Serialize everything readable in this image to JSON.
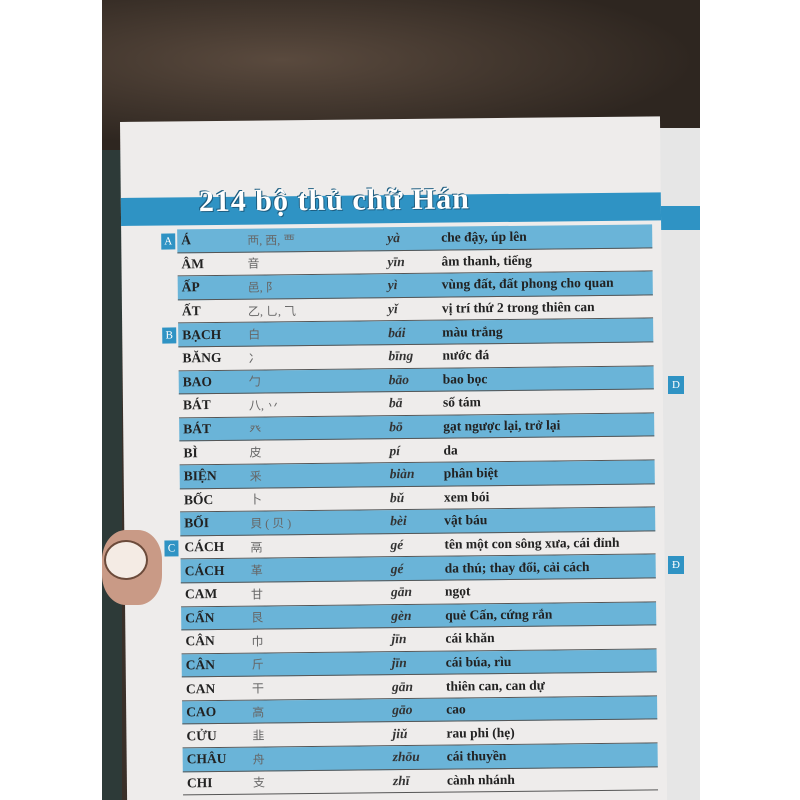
{
  "title": "214 bộ thủ chữ Hán",
  "rows": [
    {
      "name": "Á",
      "hanzi": "襾, 西, 覀",
      "pinyin": "yà",
      "meaning": "che đậy, úp lên",
      "letter": "A"
    },
    {
      "name": "ÂM",
      "hanzi": "音",
      "pinyin": "yīn",
      "meaning": "âm thanh, tiếng"
    },
    {
      "name": "ẤP",
      "hanzi": "邑, 阝",
      "pinyin": "yì",
      "meaning": "vùng đất, đất phong cho quan"
    },
    {
      "name": "ẤT",
      "hanzi": "乙, 乚, ⺄",
      "pinyin": "yǐ",
      "meaning": "vị trí thứ 2 trong thiên can"
    },
    {
      "name": "BẠCH",
      "hanzi": "白",
      "pinyin": "bái",
      "meaning": "màu trắng",
      "letter": "B"
    },
    {
      "name": "BĂNG",
      "hanzi": "冫",
      "pinyin": "bīng",
      "meaning": "nước đá"
    },
    {
      "name": "BAO",
      "hanzi": "勹",
      "pinyin": "bāo",
      "meaning": "bao bọc"
    },
    {
      "name": "BÁT",
      "hanzi": "八, 丷",
      "pinyin": "bā",
      "meaning": "số tám"
    },
    {
      "name": "BÁT",
      "hanzi": "癶",
      "pinyin": "bō",
      "meaning": "gạt ngược lại, trở lại"
    },
    {
      "name": "BÌ",
      "hanzi": "皮",
      "pinyin": "pí",
      "meaning": "da"
    },
    {
      "name": "BIỆN",
      "hanzi": "釆",
      "pinyin": "biàn",
      "meaning": "phân biệt"
    },
    {
      "name": "BỐC",
      "hanzi": "卜",
      "pinyin": "bǔ",
      "meaning": "xem bói"
    },
    {
      "name": "BỐI",
      "hanzi": "貝 ( 贝 )",
      "pinyin": "bèi",
      "meaning": "vật báu"
    },
    {
      "name": "CÁCH",
      "hanzi": "鬲",
      "pinyin": "gé",
      "meaning": "tên một con sông xưa, cái đỉnh",
      "letter": "C"
    },
    {
      "name": "CÁCH",
      "hanzi": "革",
      "pinyin": "gé",
      "meaning": "da thú; thay đổi, cải cách"
    },
    {
      "name": "CAM",
      "hanzi": "甘",
      "pinyin": "gān",
      "meaning": "ngọt"
    },
    {
      "name": "CẤN",
      "hanzi": "艮",
      "pinyin": "gèn",
      "meaning": "quẻ Cấn, cứng rắn"
    },
    {
      "name": "CÂN",
      "hanzi": "巾",
      "pinyin": "jīn",
      "meaning": "cái khăn"
    },
    {
      "name": "CÂN",
      "hanzi": "斤",
      "pinyin": "jīn",
      "meaning": "cái búa, rìu"
    },
    {
      "name": "CAN",
      "hanzi": "干",
      "pinyin": "gān",
      "meaning": "thiên can, can dự"
    },
    {
      "name": "CAO",
      "hanzi": "高",
      "pinyin": "gāo",
      "meaning": "cao"
    },
    {
      "name": "CỬU",
      "hanzi": "韭",
      "pinyin": "jiǔ",
      "meaning": "rau phi (hẹ)"
    },
    {
      "name": "CHÂU",
      "hanzi": "舟",
      "pinyin": "zhōu",
      "meaning": "cái thuyền"
    },
    {
      "name": "CHI",
      "hanzi": "支",
      "pinyin": "zhī",
      "meaning": "cành nhánh"
    }
  ],
  "right_page": {
    "letters": [
      "D",
      "Đ"
    ]
  },
  "colors": {
    "accent": "#2f93c4",
    "row_blue": "#6ab4d8",
    "paper": "#eeeceb"
  }
}
